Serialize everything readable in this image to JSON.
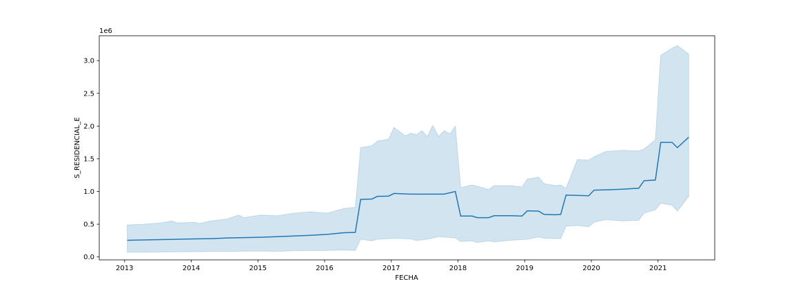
{
  "chart_data": {
    "type": "line",
    "title": "",
    "xlabel": "FECHA",
    "ylabel": "S_RESIDENCIAL_E",
    "y_offset_label": "1e6",
    "y_scale_factor": 1000000,
    "xlim": [
      2012.62,
      2021.85
    ],
    "ylim": [
      -45000,
      3380000
    ],
    "grid": false,
    "x_ticks": [
      2013,
      2014,
      2015,
      2016,
      2017,
      2018,
      2019,
      2020,
      2021
    ],
    "x_tick_labels": [
      "2013",
      "2014",
      "2015",
      "2016",
      "2017",
      "2018",
      "2019",
      "2020",
      "2021"
    ],
    "y_ticks": [
      0,
      500000,
      1000000,
      1500000,
      2000000,
      2500000,
      3000000
    ],
    "y_tick_labels": [
      "0.0",
      "0.5",
      "1.0",
      "1.5",
      "2.0",
      "2.5",
      "3.0"
    ],
    "colors": {
      "line": "#1f77b4",
      "band": "#1f77b4"
    },
    "series": [
      {
        "x": [
          2013.04,
          2013.29,
          2013.54,
          2013.79,
          2014.04,
          2014.29,
          2014.54,
          2014.79,
          2015.04,
          2015.29,
          2015.54,
          2015.79,
          2016.04,
          2016.29,
          2016.46,
          2016.54,
          2016.71,
          2016.79,
          2016.96,
          2017.04,
          2017.29,
          2017.54,
          2017.79,
          2017.96,
          2018.04,
          2018.21,
          2018.29,
          2018.46,
          2018.54,
          2018.71,
          2018.79,
          2018.96,
          2019.04,
          2019.21,
          2019.29,
          2019.46,
          2019.54,
          2019.62,
          2019.79,
          2019.96,
          2020.04,
          2020.21,
          2020.46,
          2020.71,
          2020.79,
          2020.96,
          2021.04,
          2021.21,
          2021.29,
          2021.46
        ],
        "y": [
          255000,
          260000,
          265000,
          270000,
          275000,
          280000,
          290000,
          295000,
          300000,
          310000,
          320000,
          330000,
          345000,
          370000,
          375000,
          880000,
          885000,
          925000,
          930000,
          970000,
          960000,
          960000,
          960000,
          1000000,
          625000,
          625000,
          600000,
          600000,
          630000,
          630000,
          630000,
          625000,
          705000,
          700000,
          650000,
          645000,
          650000,
          945000,
          940000,
          935000,
          1020000,
          1025000,
          1035000,
          1050000,
          1165000,
          1175000,
          1750000,
          1750000,
          1670000,
          1830000
        ],
        "lower_x": [
          2013.04,
          2013.54,
          2014.04,
          2014.54,
          2015.04,
          2015.29,
          2015.54,
          2015.79,
          2016.04,
          2016.29,
          2016.46,
          2016.54,
          2016.71,
          2016.79,
          2017.04,
          2017.29,
          2017.38,
          2017.54,
          2017.71,
          2017.96,
          2018.04,
          2018.21,
          2018.29,
          2018.46,
          2018.54,
          2018.79,
          2019.04,
          2019.21,
          2019.29,
          2019.54,
          2019.62,
          2019.79,
          2019.96,
          2020.04,
          2020.21,
          2020.46,
          2020.71,
          2020.79,
          2020.96,
          2021.04,
          2021.21,
          2021.29,
          2021.46
        ],
        "lower_y": [
          70000,
          75000,
          80000,
          85000,
          90000,
          85000,
          95000,
          95000,
          100000,
          105000,
          100000,
          270000,
          245000,
          270000,
          285000,
          275000,
          250000,
          270000,
          310000,
          290000,
          235000,
          245000,
          220000,
          245000,
          230000,
          255000,
          270000,
          305000,
          285000,
          280000,
          470000,
          480000,
          460000,
          530000,
          570000,
          550000,
          560000,
          670000,
          720000,
          820000,
          790000,
          700000,
          925000
        ],
        "upper_x": [
          2013.04,
          2013.29,
          2013.54,
          2013.71,
          2013.79,
          2014.04,
          2014.12,
          2014.29,
          2014.54,
          2014.71,
          2014.79,
          2015.04,
          2015.29,
          2015.54,
          2015.79,
          2016.04,
          2016.29,
          2016.46,
          2016.54,
          2016.71,
          2016.79,
          2016.96,
          2017.04,
          2017.21,
          2017.29,
          2017.38,
          2017.46,
          2017.54,
          2017.62,
          2017.71,
          2017.79,
          2017.88,
          2017.96,
          2018.04,
          2018.21,
          2018.29,
          2018.46,
          2018.54,
          2018.79,
          2018.96,
          2019.04,
          2019.21,
          2019.29,
          2019.46,
          2019.54,
          2019.62,
          2019.79,
          2019.96,
          2020.04,
          2020.21,
          2020.46,
          2020.71,
          2020.79,
          2020.96,
          2021.04,
          2021.21,
          2021.29,
          2021.46
        ],
        "upper_y": [
          490000,
          500000,
          520000,
          550000,
          520000,
          530000,
          510000,
          550000,
          580000,
          640000,
          600000,
          640000,
          630000,
          670000,
          690000,
          670000,
          740000,
          760000,
          1670000,
          1700000,
          1770000,
          1800000,
          1980000,
          1850000,
          1890000,
          1870000,
          1930000,
          1840000,
          2010000,
          1840000,
          1930000,
          1880000,
          2000000,
          1060000,
          1100000,
          1080000,
          1030000,
          1090000,
          1090000,
          1070000,
          1190000,
          1220000,
          1120000,
          1090000,
          1100000,
          1050000,
          1490000,
          1480000,
          1530000,
          1610000,
          1630000,
          1620000,
          1650000,
          1790000,
          3080000,
          3190000,
          3230000,
          3100000
        ]
      }
    ]
  }
}
